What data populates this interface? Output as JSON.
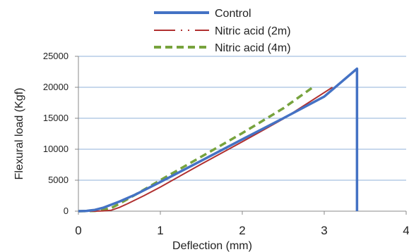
{
  "chart_data": {
    "type": "line",
    "title": "",
    "xlabel": "Deflection (mm)",
    "ylabel": "Flexural load (Kgf)",
    "xlim": [
      0,
      4
    ],
    "ylim": [
      0,
      25000
    ],
    "x_ticks": [
      "0",
      "1",
      "2",
      "3",
      "4"
    ],
    "y_ticks": [
      "0",
      "5000",
      "10000",
      "15000",
      "20000",
      "25000"
    ],
    "grid": "horizontal",
    "legend_position": "top",
    "series": [
      {
        "name": "Control",
        "color": "#4472c4",
        "style": "solid",
        "x": [
          0,
          0.1,
          0.2,
          0.3,
          0.5,
          0.7,
          1.0,
          1.5,
          2.0,
          2.5,
          3.0,
          3.4,
          3.4
        ],
        "y": [
          0,
          50,
          200,
          550,
          1550,
          2700,
          4700,
          8150,
          11600,
          15000,
          18500,
          23000,
          0
        ]
      },
      {
        "name": "Nitric acid (2m)",
        "color": "#b03030",
        "style": "solid",
        "x": [
          0,
          0.2,
          0.3,
          0.4,
          0.5,
          0.6,
          0.8,
          1.0,
          1.5,
          2.0,
          2.5,
          3.1
        ],
        "y": [
          0,
          0,
          50,
          150,
          600,
          1200,
          2500,
          3900,
          7600,
          11200,
          14900,
          20000
        ]
      },
      {
        "name": "Nitric acid (4m)",
        "color": "#77a33d",
        "style": "dashed",
        "x": [
          0,
          0.2,
          0.3,
          0.4,
          0.5,
          0.7,
          1.0,
          1.5,
          2.0,
          2.5,
          2.85
        ],
        "y": [
          0,
          50,
          200,
          500,
          1200,
          2700,
          5000,
          8800,
          12600,
          16600,
          19900
        ]
      }
    ]
  }
}
